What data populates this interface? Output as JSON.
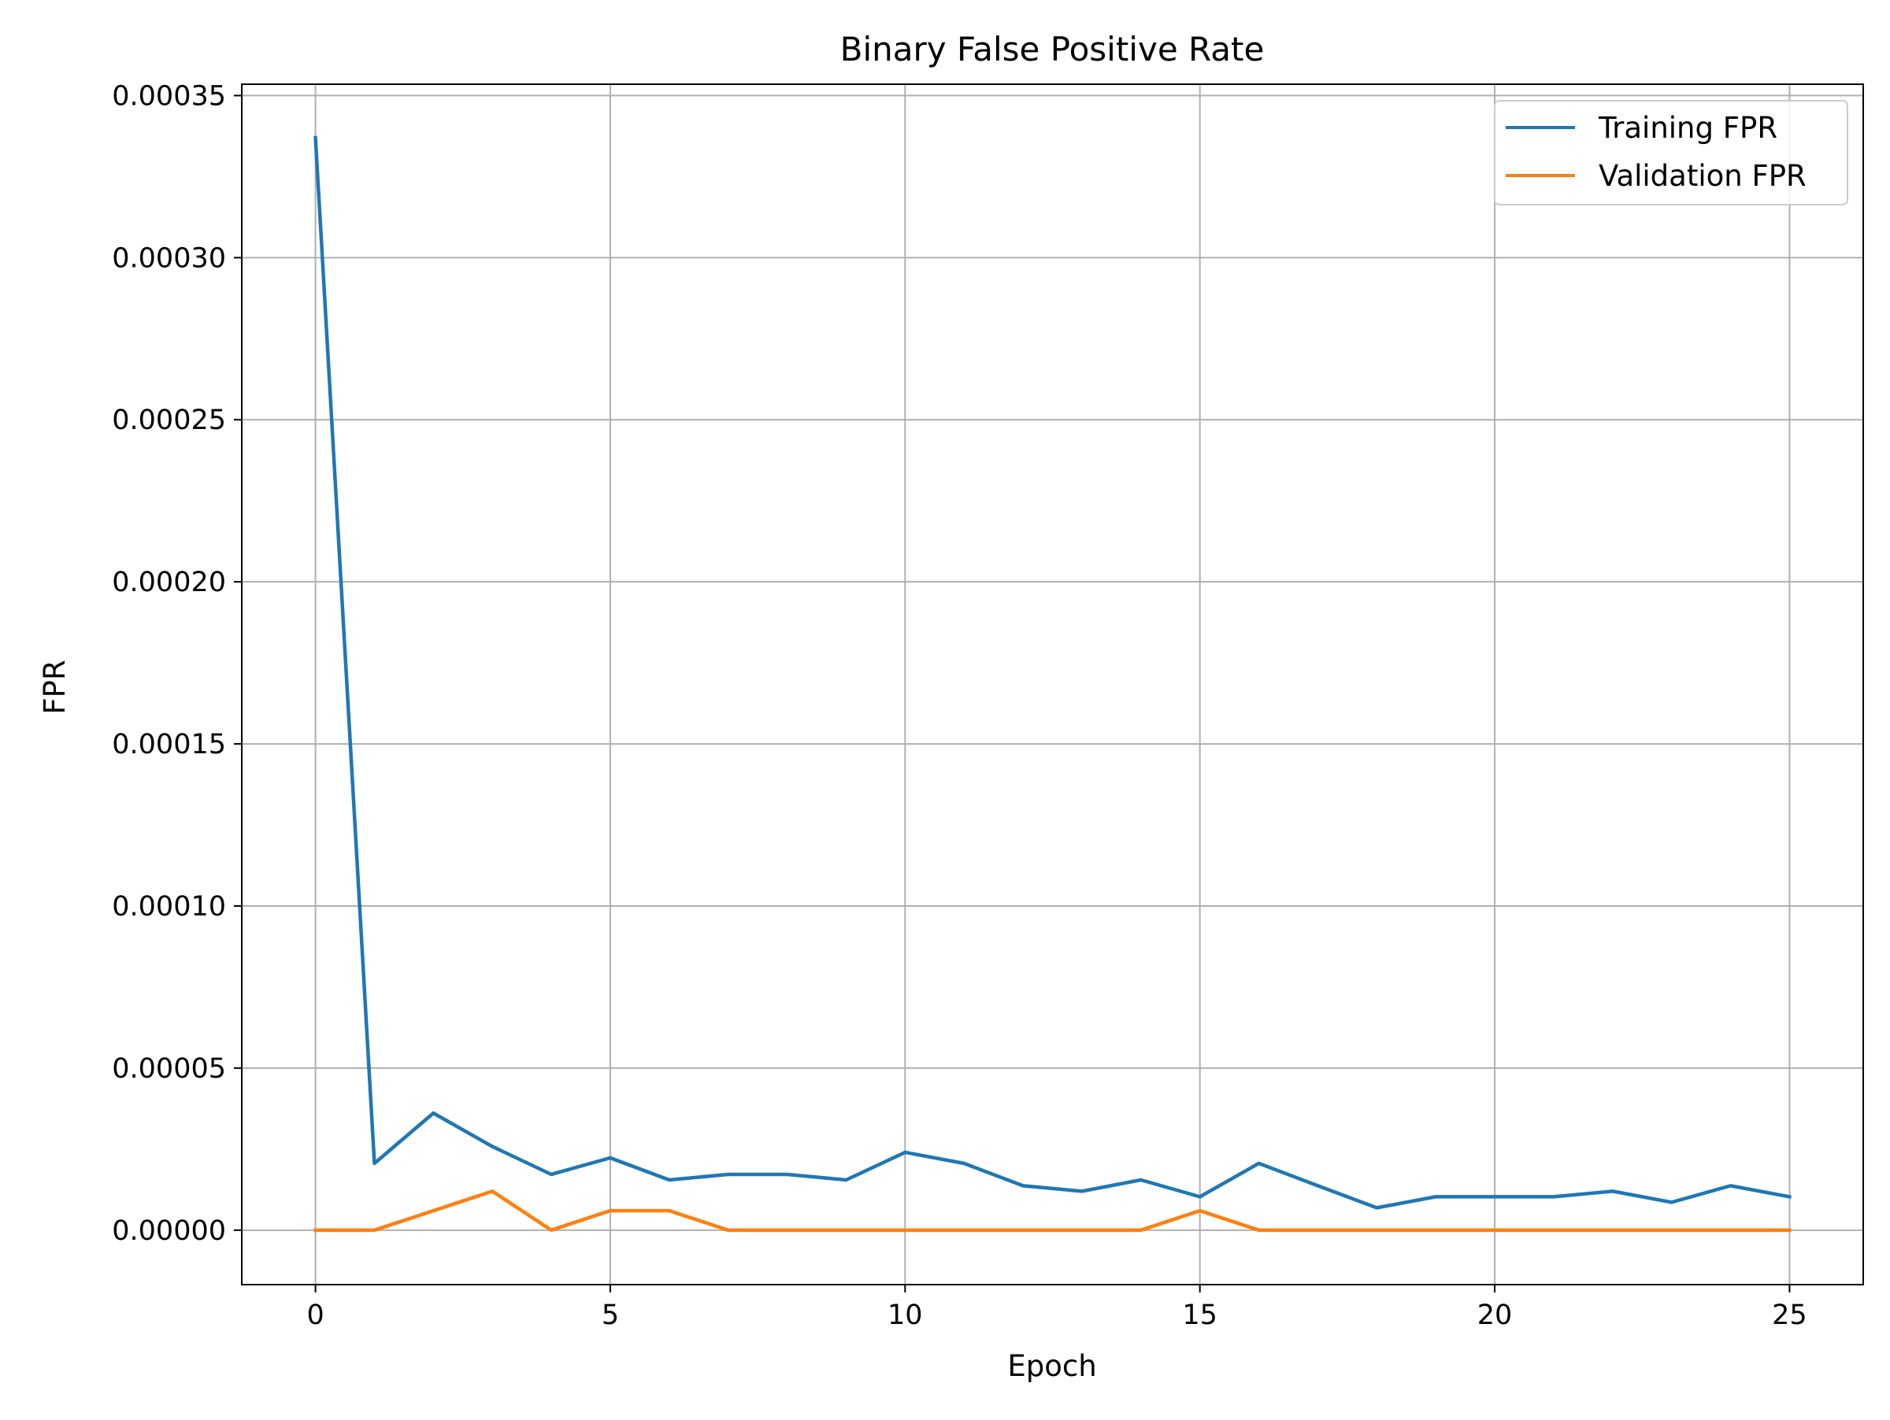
{
  "chart_data": {
    "type": "line",
    "title": "Binary False Positive Rate",
    "xlabel": "Epoch",
    "ylabel": "FPR",
    "xlim": [
      -1.25,
      26.25
    ],
    "ylim": [
      -1.68e-05,
      0.0003535
    ],
    "x_ticks": [
      0,
      5,
      10,
      15,
      20,
      25
    ],
    "x_tick_labels": [
      "0",
      "5",
      "10",
      "15",
      "20",
      "25"
    ],
    "y_ticks": [
      0,
      5e-05,
      0.0001,
      0.00015,
      0.0002,
      0.00025,
      0.0003,
      0.00035
    ],
    "y_tick_labels": [
      "0.00000",
      "0.00005",
      "0.00010",
      "0.00015",
      "0.00020",
      "0.00025",
      "0.00030",
      "0.00035"
    ],
    "grid": true,
    "legend_position": "top-right",
    "x": [
      0,
      1,
      2,
      3,
      4,
      5,
      6,
      7,
      8,
      9,
      10,
      11,
      12,
      13,
      14,
      15,
      16,
      17,
      18,
      19,
      20,
      21,
      22,
      23,
      24,
      25
    ],
    "series": [
      {
        "name": "Training FPR",
        "color": "#1f77b4",
        "values": [
          0.000337,
          2.06e-05,
          3.61e-05,
          2.58e-05,
          1.72e-05,
          2.23e-05,
          1.55e-05,
          1.72e-05,
          1.72e-05,
          1.55e-05,
          2.4e-05,
          2.06e-05,
          1.37e-05,
          1.2e-05,
          1.55e-05,
          1.03e-05,
          2.06e-05,
          1.37e-05,
          6.9e-06,
          1.03e-05,
          1.03e-05,
          1.03e-05,
          1.2e-05,
          8.6e-06,
          1.37e-05,
          1.03e-05
        ]
      },
      {
        "name": "Validation FPR",
        "color": "#ff7f0e",
        "values": [
          0,
          0,
          6e-06,
          1.2e-05,
          0,
          6e-06,
          6e-06,
          0,
          0,
          0,
          0,
          0,
          0,
          0,
          0,
          6e-06,
          0,
          0,
          0,
          0,
          0,
          0,
          0,
          0,
          0,
          0
        ]
      }
    ]
  }
}
